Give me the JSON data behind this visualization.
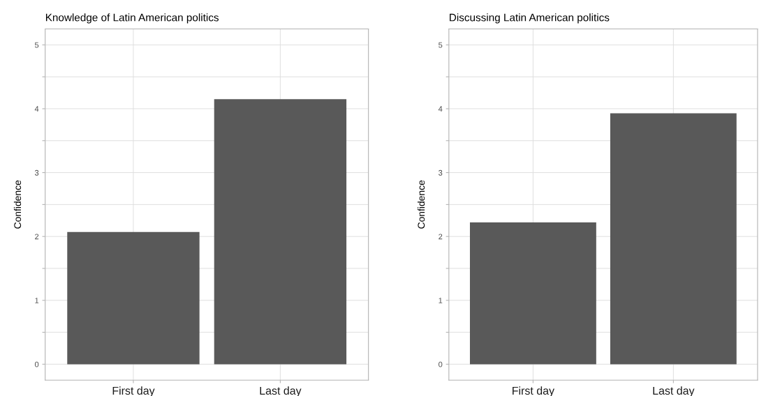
{
  "chart_data": [
    {
      "type": "bar",
      "title": "Knowledge of Latin American politics",
      "ylabel": "Confidence",
      "categories": [
        "First day",
        "Last day"
      ],
      "values": [
        2.07,
        4.15
      ],
      "color": "#595959",
      "ylim": [
        -0.25,
        5.25
      ],
      "yticks": [
        0,
        {
          "value": 0.5,
          "label": null
        },
        1,
        {
          "value": 1.5,
          "label": null
        },
        2,
        {
          "value": 2.5,
          "label": null
        },
        3,
        {
          "value": 3.5,
          "label": null
        },
        4,
        {
          "value": 4.5,
          "label": null
        },
        5
      ],
      "grid": true
    },
    {
      "type": "bar",
      "title": "Discussing Latin American politics",
      "ylabel": "Confidence",
      "categories": [
        "First day",
        "Last day"
      ],
      "values": [
        2.22,
        3.93
      ],
      "color": "#595959",
      "ylim": [
        -0.25,
        5.25
      ],
      "yticks": [
        0,
        {
          "value": 0.5,
          "label": null
        },
        1,
        {
          "value": 1.5,
          "label": null
        },
        2,
        {
          "value": 2.5,
          "label": null
        },
        3,
        {
          "value": 3.5,
          "label": null
        },
        4,
        {
          "value": 4.5,
          "label": null
        },
        5
      ],
      "grid": true
    }
  ]
}
